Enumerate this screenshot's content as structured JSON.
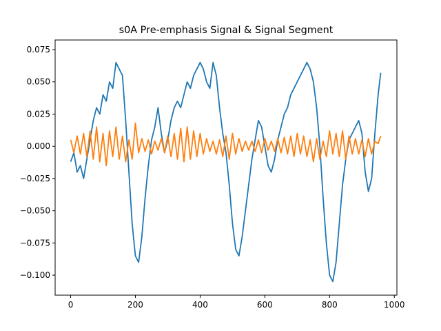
{
  "chart_data": {
    "type": "line",
    "title": "s0A Pre-emphasis Signal & Signal Segment",
    "xlabel": "",
    "ylabel": "",
    "xlim": [
      -48,
      1008
    ],
    "ylim": [
      -0.1155,
      0.0825
    ],
    "xticks": [
      0,
      200,
      400,
      600,
      800,
      1000
    ],
    "xtick_labels": [
      "0",
      "200",
      "400",
      "600",
      "800",
      "1000"
    ],
    "yticks": [
      -0.1,
      -0.075,
      -0.05,
      -0.025,
      0.0,
      0.025,
      0.05,
      0.075
    ],
    "ytick_labels": [
      "−0.100",
      "−0.075",
      "−0.050",
      "−0.025",
      "0.000",
      "0.025",
      "0.050",
      "0.075"
    ],
    "grid": false,
    "legend": "none",
    "series": [
      {
        "color": "#1f77b4",
        "x": [
          0,
          10,
          20,
          30,
          40,
          50,
          60,
          70,
          80,
          90,
          100,
          110,
          120,
          130,
          140,
          150,
          160,
          170,
          180,
          190,
          200,
          210,
          220,
          230,
          240,
          250,
          260,
          270,
          280,
          290,
          300,
          310,
          320,
          330,
          340,
          350,
          360,
          370,
          380,
          390,
          400,
          410,
          420,
          430,
          440,
          450,
          460,
          470,
          480,
          490,
          500,
          510,
          520,
          530,
          540,
          550,
          560,
          570,
          580,
          590,
          600,
          610,
          620,
          630,
          640,
          650,
          660,
          670,
          680,
          690,
          700,
          710,
          720,
          730,
          740,
          750,
          760,
          770,
          780,
          790,
          800,
          810,
          820,
          830,
          840,
          850,
          860,
          870,
          880,
          890,
          900,
          910,
          920,
          930,
          940,
          950,
          958
        ],
        "values": [
          -0.012,
          -0.005,
          -0.02,
          -0.015,
          -0.025,
          -0.01,
          0.005,
          0.02,
          0.03,
          0.025,
          0.04,
          0.035,
          0.05,
          0.045,
          0.065,
          0.06,
          0.055,
          0.02,
          -0.02,
          -0.06,
          -0.085,
          -0.09,
          -0.07,
          -0.04,
          -0.015,
          0.005,
          0.015,
          0.03,
          0.01,
          -0.005,
          0.005,
          0.02,
          0.03,
          0.035,
          0.03,
          0.04,
          0.05,
          0.045,
          0.055,
          0.06,
          0.065,
          0.06,
          0.05,
          0.045,
          0.065,
          0.055,
          0.03,
          0.01,
          -0.005,
          -0.03,
          -0.06,
          -0.08,
          -0.085,
          -0.07,
          -0.05,
          -0.03,
          -0.01,
          0.005,
          0.02,
          0.015,
          0.0,
          -0.015,
          -0.02,
          -0.01,
          0.005,
          0.015,
          0.025,
          0.03,
          0.04,
          0.045,
          0.05,
          0.055,
          0.06,
          0.065,
          0.06,
          0.05,
          0.03,
          0.0,
          -0.04,
          -0.075,
          -0.1,
          -0.105,
          -0.09,
          -0.06,
          -0.03,
          -0.01,
          0.005,
          0.01,
          0.015,
          0.02,
          0.01,
          -0.02,
          -0.035,
          -0.025,
          0.01,
          0.04,
          0.057
        ]
      },
      {
        "color": "#ff7f0e",
        "x": [
          0,
          10,
          20,
          30,
          40,
          50,
          60,
          70,
          80,
          90,
          100,
          110,
          120,
          130,
          140,
          150,
          160,
          170,
          180,
          190,
          200,
          210,
          220,
          230,
          240,
          250,
          260,
          270,
          280,
          290,
          300,
          310,
          320,
          330,
          340,
          350,
          360,
          370,
          380,
          390,
          400,
          410,
          420,
          430,
          440,
          450,
          460,
          470,
          480,
          490,
          500,
          510,
          520,
          530,
          540,
          550,
          560,
          570,
          580,
          590,
          600,
          610,
          620,
          630,
          640,
          650,
          660,
          670,
          680,
          690,
          700,
          710,
          720,
          730,
          740,
          750,
          760,
          770,
          780,
          790,
          800,
          810,
          820,
          830,
          840,
          850,
          860,
          870,
          880,
          890,
          900,
          910,
          920,
          930,
          940,
          950,
          958
        ],
        "values": [
          0.005,
          -0.005,
          0.008,
          -0.006,
          0.01,
          -0.008,
          0.012,
          -0.01,
          0.015,
          -0.012,
          0.01,
          -0.015,
          0.012,
          -0.008,
          0.015,
          -0.01,
          0.008,
          -0.012,
          0.005,
          -0.01,
          0.018,
          -0.005,
          0.006,
          -0.004,
          0.005,
          -0.006,
          0.004,
          -0.003,
          0.006,
          -0.005,
          0.008,
          -0.008,
          0.01,
          -0.01,
          0.014,
          -0.012,
          0.015,
          -0.01,
          0.012,
          -0.008,
          0.01,
          -0.006,
          0.006,
          -0.004,
          0.004,
          -0.006,
          0.005,
          -0.008,
          0.008,
          -0.01,
          0.01,
          -0.006,
          0.006,
          -0.004,
          0.004,
          -0.003,
          0.004,
          -0.004,
          0.005,
          -0.005,
          0.006,
          -0.003,
          0.004,
          -0.004,
          0.006,
          -0.005,
          0.007,
          -0.006,
          0.008,
          -0.008,
          0.01,
          -0.006,
          0.008,
          -0.008,
          0.005,
          -0.012,
          0.006,
          -0.01,
          0.004,
          -0.008,
          0.012,
          -0.006,
          0.01,
          -0.008,
          0.012,
          -0.01,
          0.008,
          -0.006,
          0.006,
          -0.006,
          0.005,
          -0.008,
          0.006,
          -0.006,
          0.004,
          0.002,
          0.008
        ]
      }
    ]
  }
}
